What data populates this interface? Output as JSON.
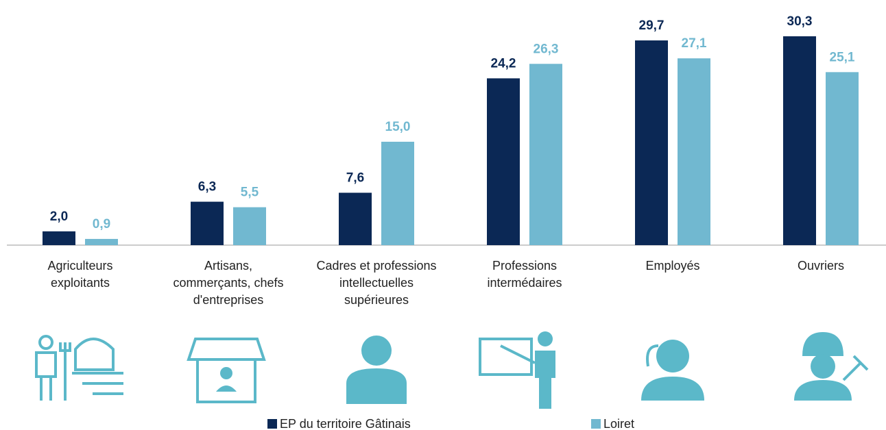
{
  "chart_data": {
    "type": "bar",
    "categories": [
      "Agriculteurs\nexploitants",
      "Artisans,\ncommerçants, chefs\nd'entreprises",
      "Cadres et professions\nintellectuelles\nsupérieures",
      "Professions\nintermédaires",
      "Employés",
      "Ouvriers"
    ],
    "series": [
      {
        "name": "EP du territoire Gâtinais",
        "color": "#0b2855",
        "values": [
          2.0,
          6.3,
          7.6,
          24.2,
          29.7,
          30.3
        ],
        "value_labels": [
          "2,0",
          "6,3",
          "7,6",
          "24,2",
          "29,7",
          "30,3"
        ]
      },
      {
        "name": "Loiret",
        "color": "#71b8d0",
        "values": [
          0.9,
          5.5,
          15.0,
          26.3,
          27.1,
          25.1
        ],
        "value_labels": [
          "0,9",
          "5,5",
          "15,0",
          "26,3",
          "27,1",
          "25,1"
        ]
      }
    ],
    "legend": "bottom"
  }
}
